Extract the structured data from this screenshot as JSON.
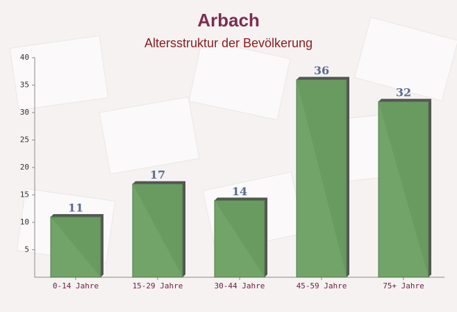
{
  "chart_data": {
    "type": "bar",
    "title": "Arbach",
    "subtitle": "Altersstruktur der Bevölkerung",
    "categories": [
      "0-14 Jahre",
      "15-29 Jahre",
      "30-44 Jahre",
      "45-59 Jahre",
      "75+ Jahre"
    ],
    "values": [
      11,
      17,
      14,
      36,
      32
    ],
    "color": "#6a9f62",
    "ylim": [
      0,
      40
    ],
    "yticks": [
      5,
      10,
      15,
      20,
      25,
      30,
      35,
      40
    ],
    "grid": false
  }
}
